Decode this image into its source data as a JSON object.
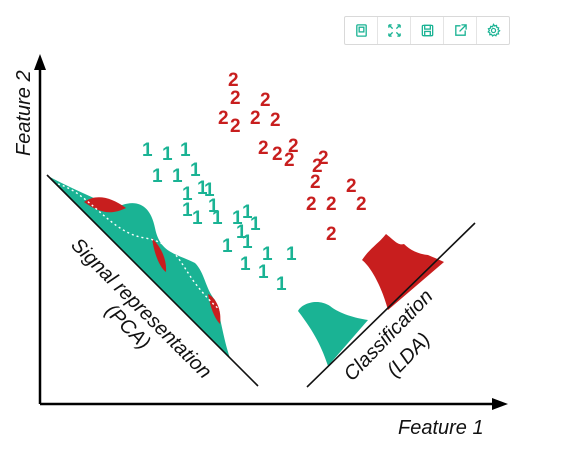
{
  "toolbar": {
    "buttons": [
      {
        "icon": "page-icon",
        "name": "page-button"
      },
      {
        "icon": "expand-icon",
        "name": "fullscreen-button"
      },
      {
        "icon": "save-icon",
        "name": "save-button"
      },
      {
        "icon": "share-icon",
        "name": "share-button"
      },
      {
        "icon": "gear-icon",
        "name": "settings-button"
      }
    ],
    "color": "#1ab394"
  },
  "figure": {
    "y_axis_label": "Feature 2",
    "x_axis_label": "Feature 1",
    "pca_label_line1": "Signal representation",
    "pca_label_line2": "(PCA)",
    "lda_label_line1": "Classification",
    "lda_label_line2": "(LDA)",
    "class1_symbol": "1",
    "class2_symbol": "2",
    "class1_color": "#1ab394",
    "class2_color": "#c81e1e"
  }
}
